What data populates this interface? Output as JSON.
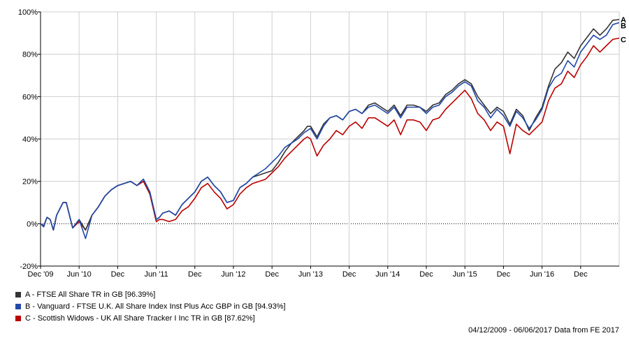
{
  "chart_data": {
    "type": "line",
    "y_ticks": [
      "100%",
      "80%",
      "60%",
      "40%",
      "20%",
      "0%",
      "-20%"
    ],
    "y_tick_values": [
      100,
      80,
      60,
      40,
      20,
      0,
      -20
    ],
    "ylim": [
      -20,
      100
    ],
    "x_ticks": [
      "Dec '09",
      "Jun '10",
      "Dec",
      "Jun '11",
      "Dec",
      "Jun '12",
      "Dec",
      "Jun '13",
      "Dec",
      "Jun '14",
      "Dec",
      "Jun '15",
      "Dec",
      "Jun '16",
      "Dec"
    ],
    "x_tick_values": [
      0,
      6,
      12,
      18,
      24,
      30,
      36,
      42,
      48,
      54,
      60,
      66,
      72,
      78,
      84
    ],
    "xlim": [
      0,
      90
    ],
    "grid": true,
    "baseline_dotted_at": 0,
    "series": [
      {
        "name": "A - FTSE All Share TR in GB [96.39%]",
        "letter": "A",
        "color": "#333333",
        "x": [
          0,
          0.5,
          1,
          1.5,
          2,
          2.5,
          3,
          3.5,
          4,
          4.5,
          5,
          6,
          7,
          8,
          9,
          10,
          11,
          12,
          13,
          14,
          15,
          16,
          17,
          18,
          18.5,
          19,
          20,
          21,
          22,
          23,
          24,
          25,
          26,
          27,
          28,
          29,
          30,
          31,
          32,
          33,
          34,
          35,
          36,
          37,
          38,
          39,
          40,
          41,
          41.5,
          42,
          43,
          44,
          45,
          46,
          47,
          48,
          49,
          50,
          51,
          52,
          53,
          54,
          55,
          56,
          57,
          58,
          59,
          60,
          61,
          62,
          63,
          64,
          65,
          66,
          67,
          68,
          69,
          70,
          71,
          72,
          73,
          74,
          75,
          76,
          77,
          78,
          79,
          80,
          81,
          82,
          83,
          84,
          85,
          86,
          87,
          88,
          89,
          90
        ],
        "values": [
          0,
          -1,
          3,
          2,
          -3,
          4,
          7,
          10,
          10,
          4,
          -2,
          2,
          -3,
          4,
          8,
          13,
          16,
          18,
          19,
          20,
          18,
          21,
          15,
          2,
          3,
          5,
          6,
          4,
          9,
          12,
          15,
          20,
          22,
          18,
          15,
          10,
          11,
          17,
          19,
          22,
          23,
          24,
          25,
          29,
          34,
          38,
          41,
          44,
          46,
          46,
          41,
          47,
          50,
          51,
          49,
          53,
          54,
          52,
          56,
          57,
          55,
          53,
          56,
          51,
          56,
          56,
          55,
          53,
          56,
          57,
          61,
          63,
          66,
          68,
          66,
          60,
          56,
          52,
          55,
          53,
          47,
          54,
          51,
          44,
          50,
          55,
          65,
          73,
          76,
          81,
          78,
          84,
          88,
          92,
          89,
          92,
          96,
          96.39
        ]
      },
      {
        "name": "B - Vanguard - FTSE U.K. All Share Index Inst Plus Acc GBP in GB [94.93%]",
        "letter": "B",
        "color": "#2249a8",
        "x": [
          0,
          0.5,
          1,
          1.5,
          2,
          2.5,
          3,
          3.5,
          4,
          4.5,
          5,
          6,
          7,
          8,
          9,
          10,
          11,
          12,
          13,
          14,
          15,
          16,
          17,
          18,
          18.5,
          19,
          20,
          21,
          22,
          23,
          24,
          25,
          26,
          27,
          28,
          29,
          30,
          31,
          32,
          33,
          34,
          35,
          36,
          37,
          38,
          39,
          40,
          41,
          41.5,
          42,
          43,
          44,
          45,
          46,
          47,
          48,
          49,
          50,
          51,
          52,
          53,
          54,
          55,
          56,
          57,
          58,
          59,
          60,
          61,
          62,
          63,
          64,
          65,
          66,
          67,
          68,
          69,
          70,
          71,
          72,
          73,
          74,
          75,
          76,
          77,
          78,
          79,
          80,
          81,
          82,
          83,
          84,
          85,
          86,
          87,
          88,
          89,
          90
        ],
        "values": [
          0,
          -1.5,
          3,
          2,
          -3,
          4,
          7,
          10,
          10,
          4,
          -2,
          2,
          -7,
          4,
          8,
          13,
          16,
          18,
          19,
          20,
          18,
          21,
          15,
          2,
          3,
          5,
          6,
          4,
          9,
          12,
          15,
          20,
          22,
          18,
          15,
          10,
          11,
          17,
          19,
          22,
          24,
          26,
          29,
          32,
          36,
          38,
          40,
          43,
          44,
          45,
          40,
          46,
          50,
          51,
          49,
          53,
          54,
          52,
          55,
          56,
          54,
          52,
          55,
          50,
          55,
          55,
          55,
          52,
          55,
          56,
          60,
          62,
          65,
          67,
          65,
          58,
          55,
          50,
          54,
          51,
          46,
          53,
          50,
          45,
          49,
          54,
          64,
          69,
          71,
          77,
          74,
          81,
          85,
          89,
          87,
          89,
          94,
          94.93
        ]
      },
      {
        "name": "C - Scottish Widows - UK All Share Tracker I Inc TR in GB [87.62%]",
        "letter": "C",
        "color": "#bb0000",
        "x": [
          0,
          0.5,
          1,
          1.5,
          2,
          2.5,
          3,
          3.5,
          4,
          4.5,
          5,
          6,
          7,
          8,
          9,
          10,
          11,
          12,
          13,
          14,
          15,
          16,
          17,
          18,
          18.5,
          19,
          20,
          21,
          22,
          23,
          24,
          25,
          26,
          27,
          28,
          29,
          30,
          31,
          32,
          33,
          34,
          35,
          36,
          37,
          38,
          39,
          40,
          41,
          41.5,
          42,
          43,
          44,
          45,
          46,
          47,
          48,
          49,
          50,
          51,
          52,
          53,
          54,
          55,
          56,
          57,
          58,
          59,
          60,
          61,
          62,
          63,
          64,
          65,
          66,
          67,
          68,
          69,
          70,
          71,
          72,
          73,
          74,
          75,
          76,
          77,
          78,
          79,
          80,
          81,
          82,
          83,
          84,
          85,
          86,
          87,
          88,
          89,
          90
        ],
        "values": [
          0,
          -1,
          3,
          2,
          -3,
          4,
          7,
          10,
          10,
          4,
          -2,
          1,
          -3,
          4,
          8,
          13,
          16,
          18,
          19,
          20,
          18,
          20,
          14,
          1,
          2,
          2,
          1,
          2,
          6,
          8,
          12,
          17,
          19,
          15,
          12,
          7,
          9,
          14,
          17,
          19,
          20,
          21,
          24,
          27,
          31,
          34,
          37,
          40,
          41,
          40,
          32,
          37,
          40,
          44,
          42,
          46,
          48,
          45,
          50,
          50,
          48,
          46,
          49,
          42,
          49,
          49,
          48,
          44,
          49,
          50,
          54,
          57,
          60,
          63,
          59,
          52,
          49,
          44,
          48,
          46,
          33,
          47,
          44,
          42,
          45,
          48,
          58,
          64,
          66,
          72,
          69,
          75,
          79,
          84,
          81,
          84,
          87,
          87.62
        ]
      }
    ]
  },
  "legend": {
    "items": [
      "A - FTSE All Share TR in GB [96.39%]",
      "B - Vanguard - FTSE U.K. All Share Index Inst Plus Acc GBP in GB [94.93%]",
      "C - Scottish Widows - UK All Share Tracker I Inc TR in GB [87.62%]"
    ]
  },
  "footer": {
    "text": "04/12/2009 - 06/06/2017 Data from FE 2017"
  }
}
